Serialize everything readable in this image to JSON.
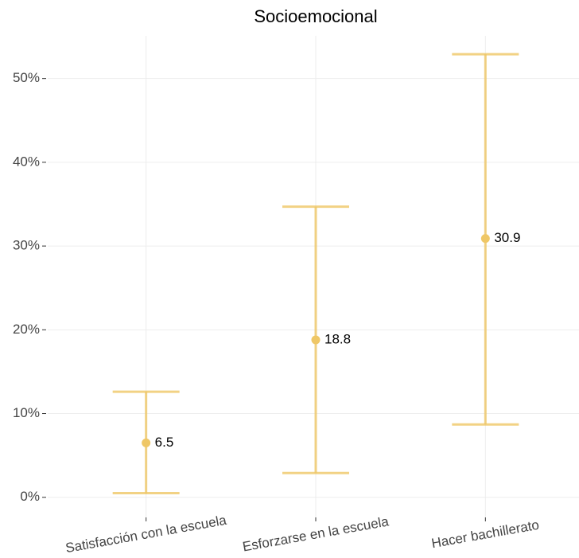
{
  "chart_data": {
    "type": "errorbar",
    "title": "Socioemocional",
    "categories": [
      "Satisfacción con la escuela",
      "Esforzarse en la escuela",
      "Hacer bachillerato"
    ],
    "values": [
      6.5,
      18.8,
      30.9
    ],
    "lower": [
      0.5,
      2.9,
      8.7
    ],
    "upper": [
      12.6,
      34.7,
      52.9
    ],
    "color": "#efc766",
    "ylim": [
      -2.4,
      55.1
    ],
    "yticks": [
      {
        "value": 0,
        "label": "0%"
      },
      {
        "value": 10,
        "label": "10%"
      },
      {
        "value": 20,
        "label": "20%"
      },
      {
        "value": 30,
        "label": "30%"
      },
      {
        "value": 40,
        "label": "40%"
      },
      {
        "value": 50,
        "label": "50%"
      }
    ],
    "grid": true
  }
}
